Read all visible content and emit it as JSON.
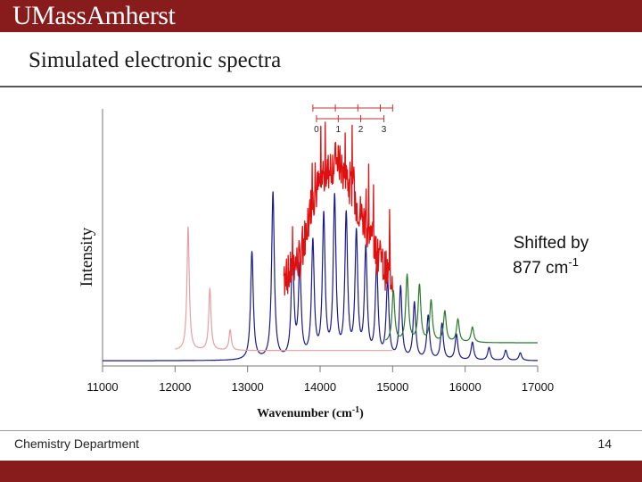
{
  "header": {
    "logo": "UMassAmherst"
  },
  "slide": {
    "title": "Simulated electronic spectra"
  },
  "footer": {
    "department": "Chemistry Department",
    "page_number": "14"
  },
  "colors": {
    "brand": "#881c1c",
    "blue": "#1a1a8c",
    "red": "#e01010",
    "green": "#2a7a2a",
    "pink": "#e6a0a0"
  },
  "chart_data": {
    "type": "line",
    "xlabel": "Wavenumber (cm",
    "xlabel_sup": "-1",
    "xlabel_end": ")",
    "ylabel": "Intensity",
    "xlim": [
      11000,
      17000
    ],
    "ylim": [
      0,
      1.0
    ],
    "xticks": [
      11000,
      12000,
      13000,
      14000,
      15000,
      16000,
      17000
    ],
    "annotation": {
      "line1": "Shifted by",
      "line2": "877 cm",
      "sup": "-1"
    },
    "vib_markers": {
      "labels": [
        "0",
        "1",
        "2",
        "3"
      ],
      "top_ticks": [
        13900,
        14210,
        14520,
        14830,
        15000
      ],
      "bottom_ticks": [
        13950,
        14250,
        14560,
        14880
      ]
    },
    "series": [
      {
        "name": "blue simulated spectrum",
        "color": "#1a1a8c",
        "baseline": 0.02,
        "width": 45,
        "peaks": [
          [
            13060,
            0.42
          ],
          [
            13350,
            0.65
          ],
          [
            13620,
            0.4
          ],
          [
            13720,
            0.35
          ],
          [
            13900,
            0.45
          ],
          [
            14050,
            0.55
          ],
          [
            14200,
            0.62
          ],
          [
            14360,
            0.55
          ],
          [
            14500,
            0.48
          ],
          [
            14630,
            0.42
          ],
          [
            14780,
            0.36
          ],
          [
            14930,
            0.3
          ],
          [
            15110,
            0.28
          ],
          [
            15300,
            0.22
          ],
          [
            15490,
            0.17
          ],
          [
            15680,
            0.14
          ],
          [
            15880,
            0.1
          ],
          [
            16100,
            0.07
          ],
          [
            16330,
            0.05
          ],
          [
            16560,
            0.04
          ],
          [
            16760,
            0.03
          ]
        ]
      },
      {
        "name": "pink reference spectrum",
        "color": "#e6a0a0",
        "baseline": 0.06,
        "width": 38,
        "x_range": [
          12000,
          15000
        ],
        "peaks": [
          [
            12180,
            0.48
          ],
          [
            12480,
            0.24
          ],
          [
            12760,
            0.08
          ]
        ]
      },
      {
        "name": "green shifted spectrum",
        "color": "#2a7a2a",
        "baseline": 0.09,
        "width": 45,
        "x_range": [
          14900,
          17000
        ],
        "peaks": [
          [
            15010,
            0.2
          ],
          [
            15200,
            0.26
          ],
          [
            15370,
            0.22
          ],
          [
            15530,
            0.16
          ],
          [
            15720,
            0.12
          ],
          [
            15900,
            0.09
          ],
          [
            16100,
            0.06
          ]
        ]
      },
      {
        "name": "red experimental spectrum",
        "color": "#e01010",
        "noisy": true,
        "x": [
          13500,
          13580,
          13660,
          13740,
          13800,
          13860,
          13920,
          13980,
          14040,
          14100,
          14160,
          14220,
          14280,
          14340,
          14400,
          14460,
          14520,
          14580,
          14640,
          14700,
          14760,
          14820,
          14880,
          14940,
          15000
        ],
        "y": [
          0.34,
          0.36,
          0.4,
          0.42,
          0.52,
          0.6,
          0.66,
          0.7,
          0.72,
          0.75,
          0.78,
          0.8,
          0.78,
          0.74,
          0.7,
          0.66,
          0.62,
          0.58,
          0.55,
          0.5,
          0.45,
          0.42,
          0.38,
          0.36,
          0.35
        ]
      }
    ]
  }
}
